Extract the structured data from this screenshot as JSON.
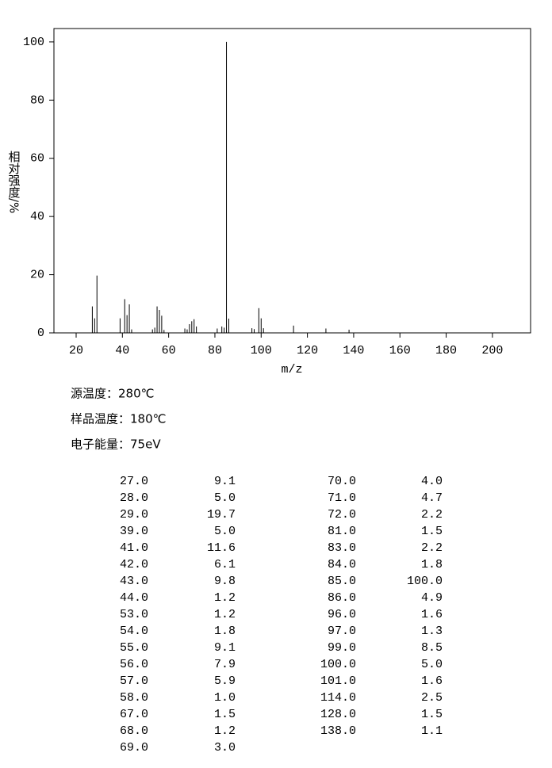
{
  "chart_data": {
    "type": "stem",
    "xlabel": "m/z",
    "ylabel": "相对强度/%",
    "x": [
      27,
      28,
      29,
      39,
      41,
      42,
      43,
      44,
      53,
      54,
      55,
      56,
      57,
      58,
      67,
      68,
      69,
      70,
      71,
      72,
      81,
      83,
      84,
      85,
      86,
      96,
      97,
      99,
      100,
      101,
      114,
      128,
      138
    ],
    "values": [
      9.1,
      5.0,
      19.7,
      5.0,
      11.6,
      6.1,
      9.8,
      1.2,
      1.2,
      1.8,
      9.1,
      7.9,
      5.9,
      1.0,
      1.5,
      1.2,
      3.0,
      4.0,
      4.7,
      2.2,
      1.5,
      2.2,
      1.8,
      100.0,
      4.9,
      1.6,
      1.3,
      8.5,
      5.0,
      1.6,
      2.5,
      1.5,
      1.1
    ],
    "color": "#000000",
    "xlim": [
      10.4,
      216.5
    ],
    "xticks": [
      20,
      40,
      60,
      80,
      100,
      120,
      140,
      160,
      180,
      200
    ],
    "ylim": [
      0,
      104.6
    ],
    "yticks": [
      0,
      20,
      40,
      60,
      80,
      100
    ]
  },
  "conditions": [
    "源温度：280℃",
    "样品温度：180℃",
    "电子能量：75eV"
  ],
  "peak_table": {
    "rows": [
      [
        "27.0",
        "9.1"
      ],
      [
        "28.0",
        "5.0"
      ],
      [
        "29.0",
        "19.7"
      ],
      [
        "39.0",
        "5.0"
      ],
      [
        "41.0",
        "11.6"
      ],
      [
        "42.0",
        "6.1"
      ],
      [
        "43.0",
        "9.8"
      ],
      [
        "44.0",
        "1.2"
      ],
      [
        "53.0",
        "1.2"
      ],
      [
        "54.0",
        "1.8"
      ],
      [
        "55.0",
        "9.1"
      ],
      [
        "56.0",
        "7.9"
      ],
      [
        "57.0",
        "5.9"
      ],
      [
        "58.0",
        "1.0"
      ],
      [
        "67.0",
        "1.5"
      ],
      [
        "68.0",
        "1.2"
      ],
      [
        "69.0",
        "3.0"
      ],
      [
        "70.0",
        "4.0"
      ],
      [
        "71.0",
        "4.7"
      ],
      [
        "72.0",
        "2.2"
      ],
      [
        "81.0",
        "1.5"
      ],
      [
        "83.0",
        "2.2"
      ],
      [
        "84.0",
        "1.8"
      ],
      [
        "85.0",
        "100.0"
      ],
      [
        "86.0",
        "4.9"
      ],
      [
        "96.0",
        "1.6"
      ],
      [
        "97.0",
        "1.3"
      ],
      [
        "99.0",
        "8.5"
      ],
      [
        "100.0",
        "5.0"
      ],
      [
        "101.0",
        "1.6"
      ],
      [
        "114.0",
        "2.5"
      ],
      [
        "128.0",
        "1.5"
      ],
      [
        "138.0",
        "1.1"
      ]
    ]
  }
}
